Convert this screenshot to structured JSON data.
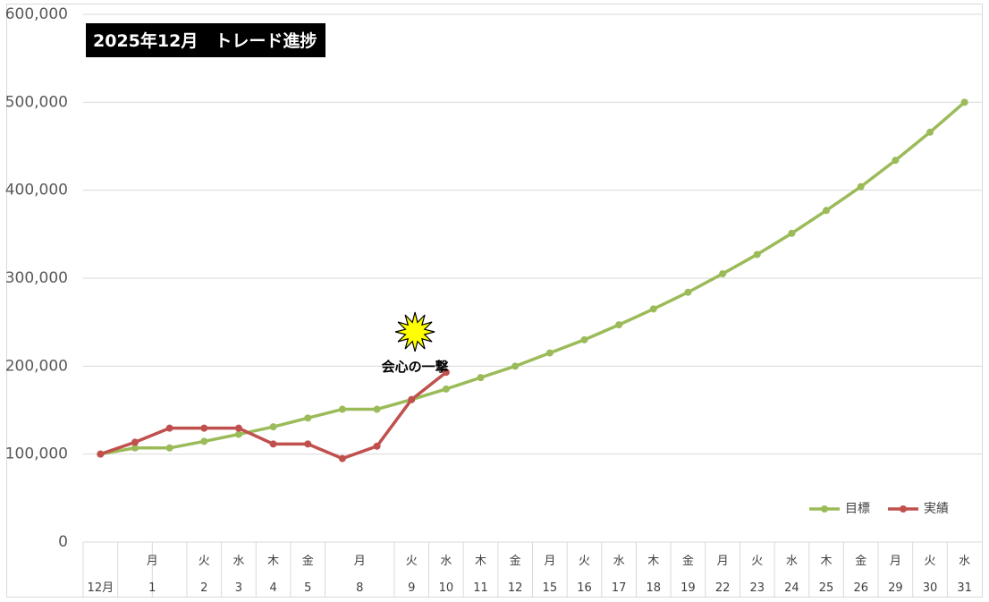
{
  "chart_data": {
    "type": "line",
    "title": "2025年12月　トレード進捗",
    "y_ticks": [
      "0",
      "100,000",
      "200,000",
      "300,000",
      "400,000",
      "500,000",
      "600,000"
    ],
    "ylim": [
      0,
      600000
    ],
    "grid": true,
    "legend_position": "bottom-right",
    "weekday_labels": [
      "",
      "月",
      "",
      "火",
      "水",
      "木",
      "金",
      "月",
      "",
      "火",
      "水",
      "木",
      "金",
      "月",
      "火",
      "水",
      "木",
      "金",
      "月",
      "火",
      "水",
      "木",
      "金",
      "月",
      "火",
      "水"
    ],
    "date_labels": [
      "12月",
      "1",
      "",
      "2",
      "3",
      "4",
      "5",
      "8",
      "",
      "9",
      "10",
      "11",
      "12",
      "15",
      "16",
      "17",
      "18",
      "19",
      "22",
      "23",
      "24",
      "25",
      "26",
      "29",
      "30",
      "31"
    ],
    "series": [
      {
        "name": "目標",
        "color": "#9bbb59",
        "values": [
          100000,
          107000,
          107000,
          114500,
          122500,
          131000,
          141000,
          151000,
          151000,
          162000,
          174000,
          187000,
          200000,
          215000,
          230000,
          247000,
          265000,
          284000,
          305000,
          327000,
          351000,
          377000,
          404000,
          434000,
          466000,
          500000
        ]
      },
      {
        "name": "実績",
        "color": "#c0504d",
        "values": [
          100000,
          113500,
          129500,
          129500,
          129500,
          111500,
          111500,
          95000,
          109000,
          162000,
          193000,
          null,
          null,
          null,
          null,
          null,
          null,
          null,
          null,
          null,
          null,
          null,
          null,
          null,
          null,
          null
        ]
      }
    ],
    "annotation": {
      "text": "会心の一撃",
      "icon": "burst-star-icon",
      "icon_color": "#ffff00",
      "index": 9.1,
      "value": 242000
    }
  }
}
